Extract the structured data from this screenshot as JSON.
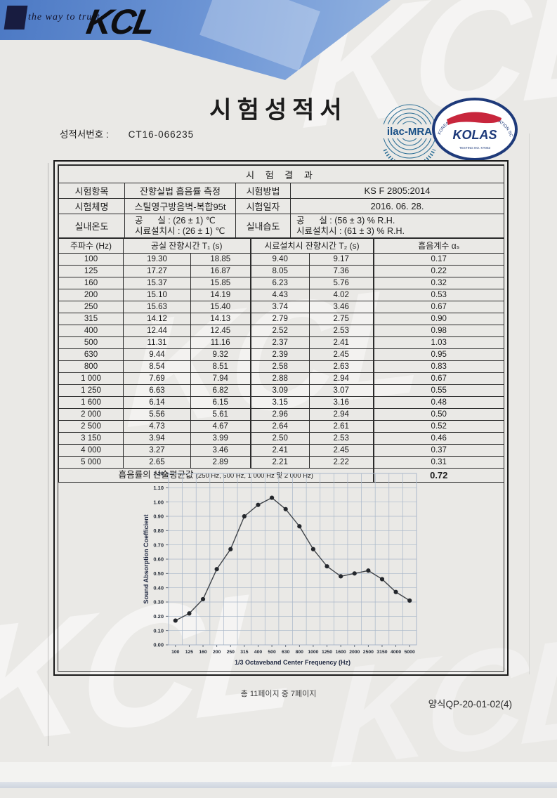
{
  "header": {
    "tagline": "the way to trust",
    "logo_text": "KCL",
    "title": "시험성적서",
    "report_no_label": "성적서번호 :",
    "report_no_value": "CT16-066235",
    "banner_color_start": "#4c79c4",
    "banner_color_end": "#92b2e0",
    "logos": {
      "ilac_text": "ilac-MRA",
      "kolas_text": "KOLAS",
      "kolas_ring_text": "KOREA LABORATORY ACCREDITATION SCHEME",
      "kolas_sub_text": "TESTING NO. KT063",
      "kolas_navy": "#1e3a7a",
      "kolas_red": "#c8263c",
      "ilac_blue": "#2c6f96"
    }
  },
  "watermark_text": "KCL",
  "table": {
    "section_title": "시 험 결 과",
    "info_rows": [
      {
        "label": "시험항목",
        "value": "잔향실법 흡음률 측정",
        "label2": "시험방법",
        "value2": "KS F 2805:2014"
      },
      {
        "label": "시험체명",
        "value": "스틸영구방음벽-복합95t",
        "label2": "시험일자",
        "value2": "2016. 06. 28."
      }
    ],
    "env": {
      "temp_label": "실내온도",
      "temp_lines": [
        "공      실 : (26 ± 1) ℃",
        "시료설치시 : (26 ± 1) ℃"
      ],
      "hum_label": "실내습도",
      "hum_lines": [
        "공      실 : (56 ± 3) % R.H.",
        "시료설치시 : (61 ± 3) % R.H."
      ]
    },
    "columns": [
      "주파수 (Hz)",
      "공실 잔향시간 T₁ (s)",
      "시료설치시 잔향시간 T₂ (s)",
      "흡음계수 αₛ"
    ],
    "rows": [
      [
        "100",
        "19.30",
        "18.85",
        "9.40",
        "9.17",
        "0.17"
      ],
      [
        "125",
        "17.27",
        "16.87",
        "8.05",
        "7.36",
        "0.22"
      ],
      [
        "160",
        "15.37",
        "15.85",
        "6.23",
        "5.76",
        "0.32"
      ],
      [
        "200",
        "15.10",
        "14.19",
        "4.43",
        "4.02",
        "0.53"
      ],
      [
        "250",
        "15.63",
        "15.40",
        "3.74",
        "3.46",
        "0.67"
      ],
      [
        "315",
        "14.12",
        "14.13",
        "2.79",
        "2.75",
        "0.90"
      ],
      [
        "400",
        "12.44",
        "12.45",
        "2.52",
        "2.53",
        "0.98"
      ],
      [
        "500",
        "11.31",
        "11.16",
        "2.37",
        "2.41",
        "1.03"
      ],
      [
        "630",
        "9.44",
        "9.32",
        "2.39",
        "2.45",
        "0.95"
      ],
      [
        "800",
        "8.54",
        "8.51",
        "2.58",
        "2.63",
        "0.83"
      ],
      [
        "1 000",
        "7.69",
        "7.94",
        "2.88",
        "2.94",
        "0.67"
      ],
      [
        "1 250",
        "6.63",
        "6.82",
        "3.09",
        "3.07",
        "0.55"
      ],
      [
        "1 600",
        "6.14",
        "6.15",
        "3.15",
        "3.16",
        "0.48"
      ],
      [
        "2 000",
        "5.56",
        "5.61",
        "2.96",
        "2.94",
        "0.50"
      ],
      [
        "2 500",
        "4.73",
        "4.67",
        "2.64",
        "2.61",
        "0.52"
      ],
      [
        "3 150",
        "3.94",
        "3.99",
        "2.50",
        "2.53",
        "0.46"
      ],
      [
        "4 000",
        "3.27",
        "3.46",
        "2.41",
        "2.45",
        "0.37"
      ],
      [
        "5 000",
        "2.65",
        "2.89",
        "2.21",
        "2.22",
        "0.31"
      ]
    ],
    "avg": {
      "label": "흡음률의 산술평균값",
      "note": "(250 Hz, 500 Hz, 1 000 Hz 및 2 000 Hz)",
      "value": "0.72"
    }
  },
  "chart_data": {
    "type": "line",
    "x": [
      100,
      125,
      160,
      200,
      250,
      315,
      400,
      500,
      630,
      800,
      1000,
      1250,
      1600,
      2000,
      2500,
      3150,
      4000,
      5000
    ],
    "x_tick_labels": [
      "100",
      "125",
      "160",
      "200",
      "250",
      "315",
      "400",
      "500",
      "630",
      "800",
      "1000",
      "1250",
      "1600",
      "2000",
      "2500",
      "3150",
      "4000",
      "5000"
    ],
    "values": [
      0.17,
      0.22,
      0.32,
      0.53,
      0.67,
      0.9,
      0.98,
      1.03,
      0.95,
      0.83,
      0.67,
      0.55,
      0.48,
      0.5,
      0.52,
      0.46,
      0.37,
      0.31
    ],
    "title": "",
    "xlabel": "1/3 Octaveband Center Frequency (Hz)",
    "ylabel": "Sound Absorption Coefficient",
    "ylim": [
      0,
      1.2
    ],
    "ytick_step": 0.1,
    "grid": true,
    "legend": "none",
    "line_color": "#3f4348",
    "marker_color": "#24272c",
    "grid_color": "#a9b7c9"
  },
  "footer": {
    "page_info": "총 11페이지 중 7페이지",
    "form_code": "양식QP-20-01-02(4)"
  }
}
